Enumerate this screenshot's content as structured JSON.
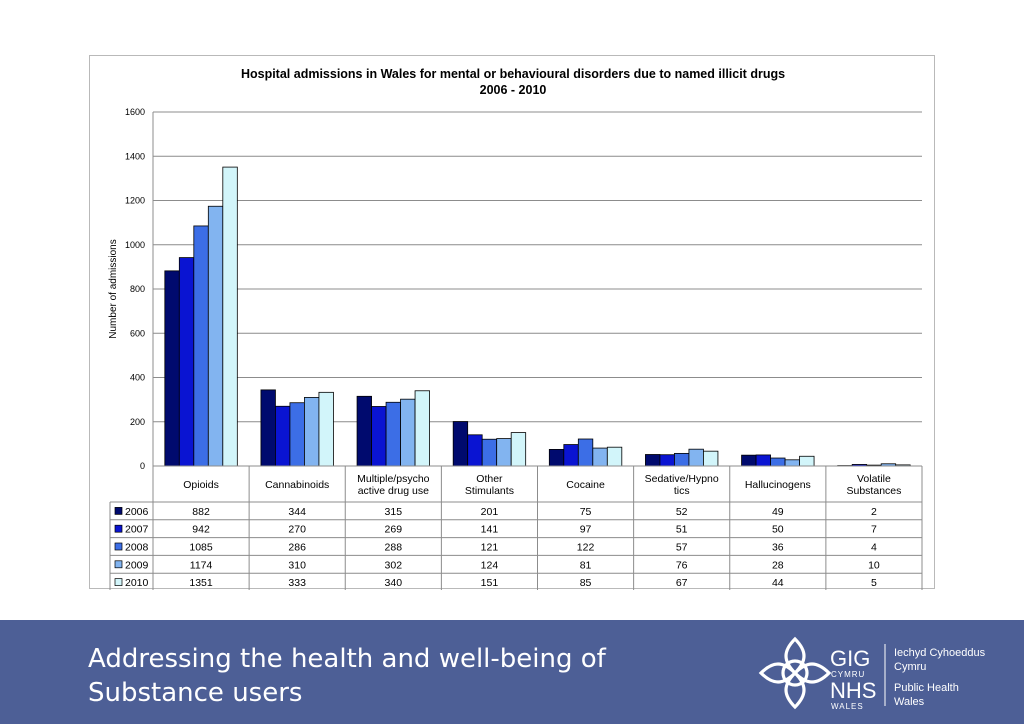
{
  "chart_data": {
    "type": "bar",
    "title": "Hospital admissions in Wales for mental or behavioural disorders due to named illicit drugs",
    "subtitle": "2006 - 2010",
    "ylabel": "Number of admissions",
    "xlabel": "",
    "ylim": [
      0,
      1600
    ],
    "yticks": [
      0,
      200,
      400,
      600,
      800,
      1000,
      1200,
      1400,
      1600
    ],
    "grid": true,
    "legend": "data-table-left",
    "categories": [
      [
        "Opioids"
      ],
      [
        "Cannabinoids"
      ],
      [
        "Multiple/psycho",
        "active drug use"
      ],
      [
        "Other",
        "Stimulants"
      ],
      [
        "Cocaine"
      ],
      [
        "Sedative/Hypno",
        "tics"
      ],
      [
        "Hallucinogens"
      ],
      [
        "Volatile",
        "Substances"
      ]
    ],
    "series": [
      {
        "name": "2006",
        "color": "#000a6e",
        "values": [
          882,
          344,
          315,
          201,
          75,
          52,
          49,
          2
        ]
      },
      {
        "name": "2007",
        "color": "#0a14d2",
        "values": [
          942,
          270,
          269,
          141,
          97,
          51,
          50,
          7
        ]
      },
      {
        "name": "2008",
        "color": "#3c6ee6",
        "values": [
          1085,
          286,
          288,
          121,
          122,
          57,
          36,
          4
        ]
      },
      {
        "name": "2009",
        "color": "#82b4f0",
        "values": [
          1174,
          310,
          302,
          124,
          81,
          76,
          28,
          10
        ]
      },
      {
        "name": "2010",
        "color": "#d2f5fa",
        "values": [
          1351,
          333,
          340,
          151,
          85,
          67,
          44,
          5
        ]
      }
    ]
  },
  "footer": {
    "title_line1": "Addressing the health and well-being of",
    "title_line2": "Substance users"
  },
  "logo": {
    "gig": "GIG",
    "cymru": "CYMRU",
    "nhs": "NHS",
    "wales": "WALES",
    "welsh_line1": "Iechyd Cyhoeddus",
    "welsh_line2": "Cymru",
    "english_line1": "Public Health",
    "english_line2": "Wales"
  }
}
